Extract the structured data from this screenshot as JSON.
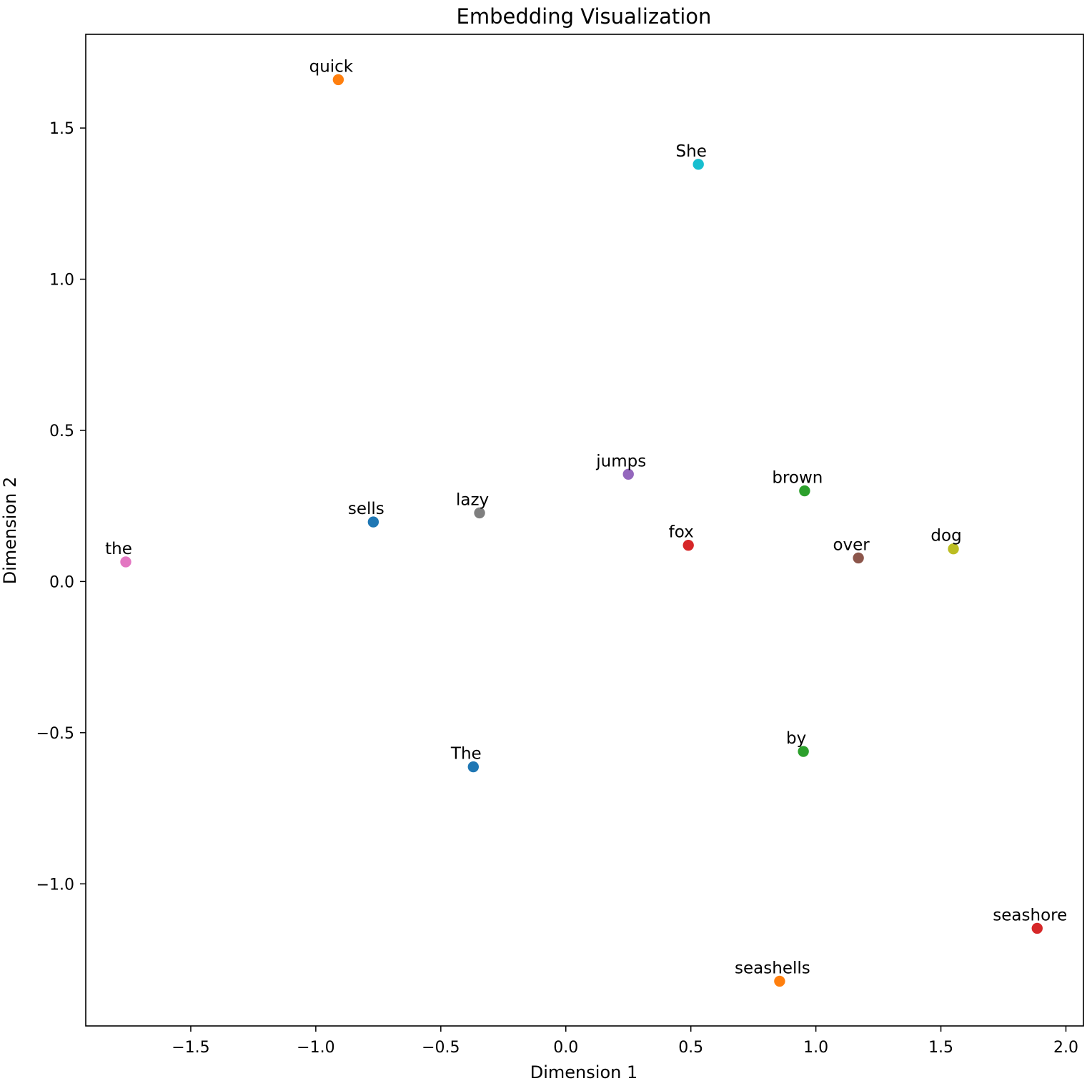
{
  "chart_data": {
    "type": "scatter",
    "title": "Embedding Visualization",
    "xlabel": "Dimension 1",
    "ylabel": "Dimension 2",
    "xlim": [
      -1.92,
      2.07
    ],
    "ylim": [
      -1.47,
      1.81
    ],
    "xticks": [
      -1.5,
      -1.0,
      -0.5,
      0.0,
      0.5,
      1.0,
      1.5,
      2.0
    ],
    "xtick_labels": [
      "−1.5",
      "−1.0",
      "−0.5",
      "0.0",
      "0.5",
      "1.0",
      "1.5",
      "2.0"
    ],
    "yticks": [
      -1.0,
      -0.5,
      0.0,
      0.5,
      1.0,
      1.5
    ],
    "ytick_labels": [
      "−1.0",
      "−0.5",
      "0.0",
      "0.5",
      "1.0",
      "1.5"
    ],
    "grid": false,
    "points": [
      {
        "label": "quick",
        "x": -0.91,
        "y": 1.66,
        "color": "#ff7f0e"
      },
      {
        "label": "She",
        "x": 0.53,
        "y": 1.38,
        "color": "#17becf"
      },
      {
        "label": "jumps",
        "x": 0.25,
        "y": 0.355,
        "color": "#9467bd"
      },
      {
        "label": "brown",
        "x": 0.955,
        "y": 0.3,
        "color": "#2ca02c"
      },
      {
        "label": "sells",
        "x": -0.77,
        "y": 0.197,
        "color": "#1f77b4"
      },
      {
        "label": "lazy",
        "x": -0.345,
        "y": 0.227,
        "color": "#7f7f7f"
      },
      {
        "label": "fox",
        "x": 0.49,
        "y": 0.12,
        "color": "#d62728"
      },
      {
        "label": "the",
        "x": -1.76,
        "y": 0.065,
        "color": "#e377c2"
      },
      {
        "label": "over",
        "x": 1.17,
        "y": 0.078,
        "color": "#8c564b"
      },
      {
        "label": "dog",
        "x": 1.55,
        "y": 0.108,
        "color": "#bcbd22"
      },
      {
        "label": "by",
        "x": 0.95,
        "y": -0.562,
        "color": "#2ca02c"
      },
      {
        "label": "The",
        "x": -0.37,
        "y": -0.613,
        "color": "#1f77b4"
      },
      {
        "label": "seashore",
        "x": 1.885,
        "y": -1.147,
        "color": "#d62728"
      },
      {
        "label": "seashells",
        "x": 0.855,
        "y": -1.322,
        "color": "#ff7f0e"
      }
    ]
  }
}
